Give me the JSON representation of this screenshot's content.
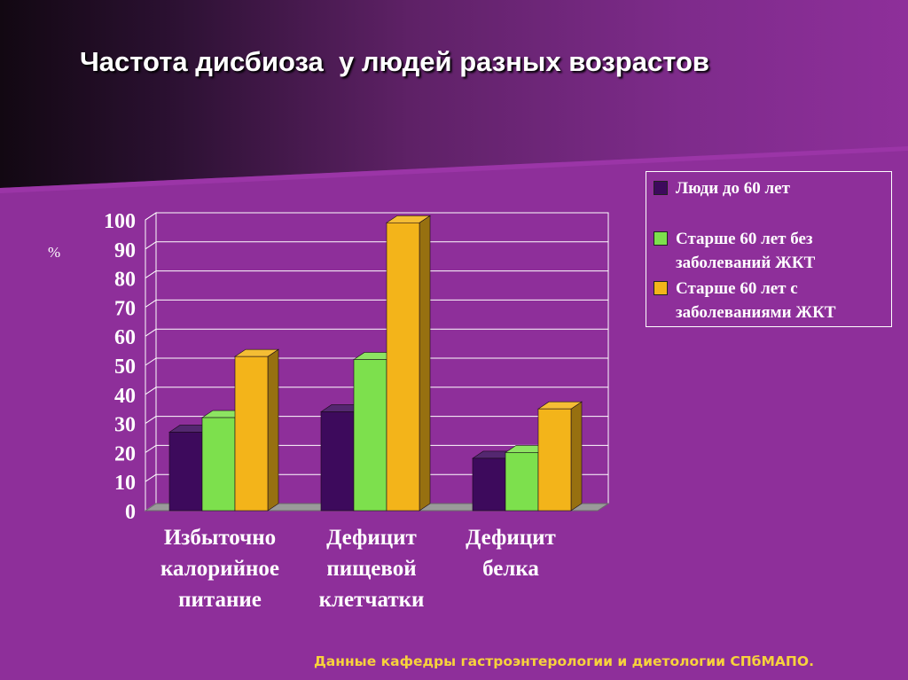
{
  "slide": {
    "title": "Частота дисбиоза  у людей разных возрастов",
    "footnote": "Данные кафедры гастроэнтерологии и диетологии СПбМАПО."
  },
  "colors": {
    "background": "#8e2f9a",
    "gradient_dark": "#140a14",
    "series": [
      "#3d0a5c",
      "#7de04d",
      "#f3b41a"
    ]
  },
  "chart_data": {
    "type": "bar",
    "style": "3d-clustered",
    "ylabel": "%",
    "ylim": [
      0,
      100
    ],
    "yticks": [
      "0",
      "10",
      "20",
      "30",
      "40",
      "50",
      "60",
      "70",
      "80",
      "90",
      "100"
    ],
    "grid": true,
    "legend_position": "right",
    "categories": [
      [
        "Избыточно",
        "калорийное",
        "питание"
      ],
      [
        "Дефицит",
        "пищевой",
        "клетчатки"
      ],
      [
        "Дефицит",
        "белка"
      ]
    ],
    "series": [
      {
        "name": "Люди до 60 лет",
        "values": [
          27,
          34,
          18
        ]
      },
      {
        "name": "Старше 60 лет без\nзаболеваний ЖКТ",
        "values": [
          32,
          52,
          20
        ]
      },
      {
        "name": "Старше 60 лет с\nзаболеваниями ЖКТ",
        "values": [
          53,
          99,
          35
        ]
      }
    ]
  }
}
